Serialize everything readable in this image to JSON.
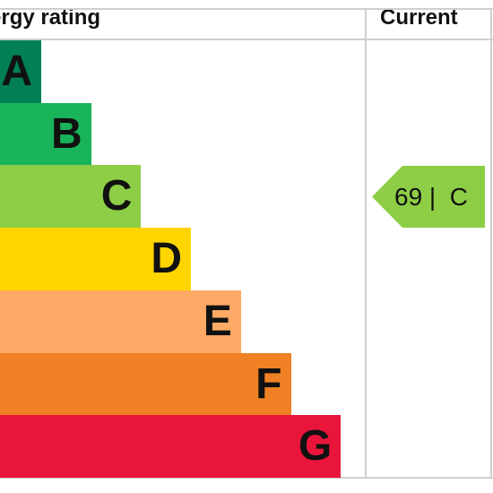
{
  "chart_data": {
    "type": "bar",
    "column_headers": {
      "rating": "ergy rating",
      "current": "Current"
    },
    "categories": [
      "A",
      "B",
      "C",
      "D",
      "E",
      "F",
      "G"
    ],
    "bands": [
      {
        "letter": "A",
        "color": "#008054"
      },
      {
        "letter": "B",
        "color": "#19b459"
      },
      {
        "letter": "C",
        "color": "#8dce46"
      },
      {
        "letter": "D",
        "color": "#ffd500"
      },
      {
        "letter": "E",
        "color": "#fcaa65"
      },
      {
        "letter": "F",
        "color": "#ef8023"
      },
      {
        "letter": "G",
        "color": "#e9153b"
      }
    ],
    "current": {
      "score": 69,
      "band": "C",
      "label": "69 |  C",
      "color": "#8dce46"
    }
  }
}
